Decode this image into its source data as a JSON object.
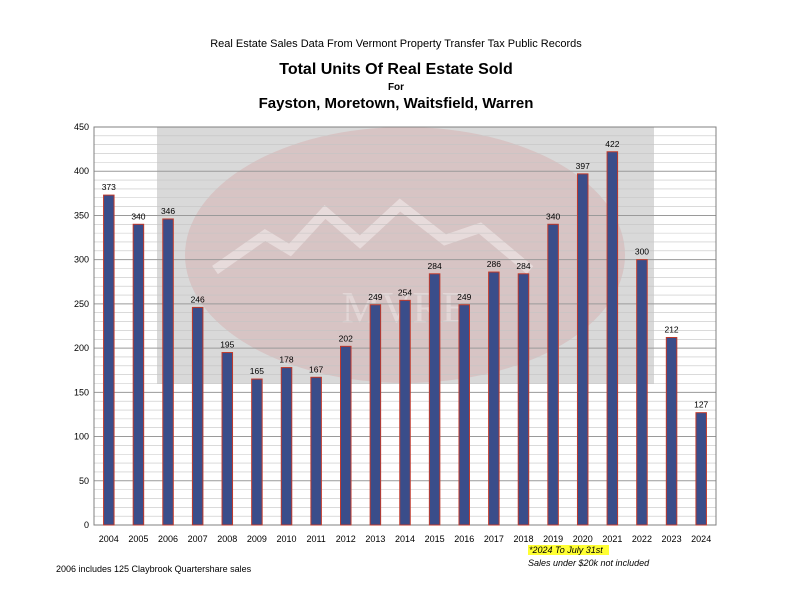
{
  "header": {
    "supertitle": "Real Estate Sales Data From Vermont Property Transfer Tax Public Records",
    "title": "Total Units Of Real Estate Sold",
    "for_text": "For",
    "subtitle": "Fayston, Moretown, Waitsfield, Warren"
  },
  "watermark": {
    "text": "MVRE"
  },
  "colors": {
    "bar_fill": "#3a4d8a",
    "bar_outline": "#c0392b",
    "watermark_bg": "#d9d9d9"
  },
  "chart_data": {
    "type": "bar",
    "title": "Total Units Of Real Estate Sold",
    "categories": [
      "2004",
      "2005",
      "2006",
      "2007",
      "2008",
      "2009",
      "2010",
      "2011",
      "2012",
      "2013",
      "2014",
      "2015",
      "2016",
      "2017",
      "2018",
      "2019",
      "2020",
      "2021",
      "2022",
      "2023",
      "2024"
    ],
    "values": [
      373,
      340,
      346,
      246,
      195,
      165,
      178,
      167,
      202,
      249,
      254,
      284,
      249,
      286,
      284,
      340,
      397,
      422,
      300,
      212,
      127
    ],
    "ylim": [
      0,
      450
    ],
    "yticks": [
      0,
      50,
      100,
      150,
      200,
      250,
      300,
      350,
      400,
      450
    ],
    "grid": true,
    "data_labels": true,
    "xlabel": "",
    "ylabel": ""
  },
  "notes": {
    "left": "2006 includes 125 Claybrook Quartershare sales",
    "date_highlight": "*2024 To July 31st",
    "exclusion": "Sales under $20k not included"
  }
}
